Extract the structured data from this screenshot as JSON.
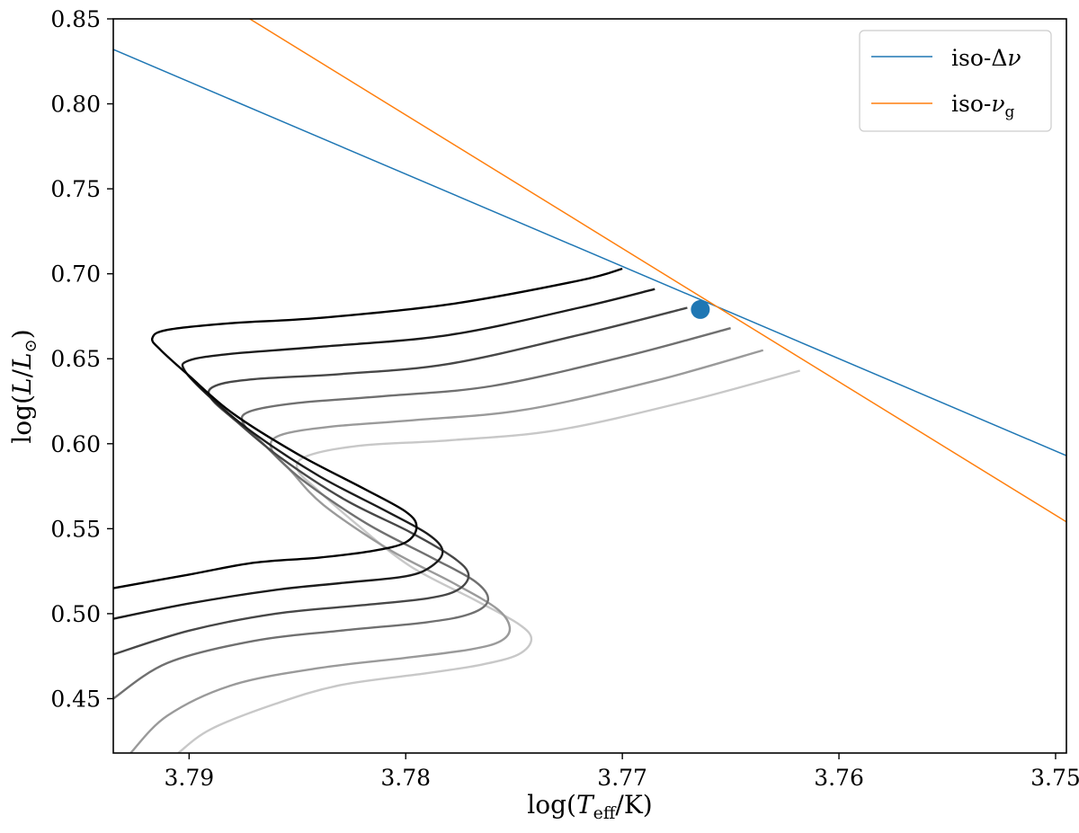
{
  "chart_data": {
    "type": "line",
    "title": "",
    "xlabel": "log(T_eff/K)",
    "xlabel_parts": {
      "pre": "log(",
      "sym": "T",
      "sub": "eff",
      "post": "/K)"
    },
    "ylabel": "log(L/L_sun)",
    "ylabel_parts": {
      "pre": "log(",
      "sym": "L",
      "mid": "/",
      "sym2": "L",
      "sub": "⊙",
      "post": ")"
    },
    "xlim": [
      3.7935,
      3.7495
    ],
    "ylim": [
      0.418,
      0.85
    ],
    "x_reversed": true,
    "xticks": [
      3.79,
      3.78,
      3.77,
      3.76,
      3.75
    ],
    "xtick_labels": [
      "3.79",
      "3.78",
      "3.77",
      "3.76",
      "3.75"
    ],
    "yticks": [
      0.45,
      0.5,
      0.55,
      0.6,
      0.65,
      0.7,
      0.75,
      0.8,
      0.85
    ],
    "ytick_labels": [
      "0.45",
      "0.50",
      "0.55",
      "0.60",
      "0.65",
      "0.70",
      "0.75",
      "0.80",
      "0.85"
    ],
    "grid": false,
    "legend": {
      "position": "top-right",
      "entries": [
        {
          "label_main": "iso-Δ",
          "label_sym": "ν",
          "label_sub": "",
          "color": "#1f77b4"
        },
        {
          "label_main": "iso-",
          "label_sym": "ν",
          "label_sub": "g",
          "color": "#ff7f0e"
        }
      ]
    },
    "reference_lines": [
      {
        "name": "iso-Δν",
        "color": "#1f77b4",
        "x": [
          3.7935,
          3.7495
        ],
        "y": [
          0.832,
          0.593
        ]
      },
      {
        "name": "iso-νg",
        "color": "#ff7f0e",
        "x": [
          3.7872,
          3.7495
        ],
        "y": [
          0.85,
          0.554
        ]
      }
    ],
    "marker": {
      "name": "intersection",
      "x": 3.7664,
      "y": 0.679,
      "color": "#1f77b4"
    },
    "series": [
      {
        "name": "track-1",
        "color": "#000000",
        "x": [
          3.7935,
          3.79,
          3.787,
          3.784,
          3.7815,
          3.78,
          3.7795,
          3.78,
          3.782,
          3.785,
          3.788,
          3.79,
          3.7913,
          3.7917,
          3.791,
          3.788,
          3.784,
          3.778,
          3.772,
          3.77
        ],
        "y": [
          0.515,
          0.523,
          0.53,
          0.533,
          0.537,
          0.542,
          0.551,
          0.56,
          0.574,
          0.594,
          0.618,
          0.64,
          0.655,
          0.662,
          0.667,
          0.671,
          0.674,
          0.682,
          0.696,
          0.703
        ]
      },
      {
        "name": "track-2",
        "color": "#1c1c1c",
        "x": [
          3.7935,
          3.79,
          3.786,
          3.783,
          3.78,
          3.7788,
          3.7783,
          3.779,
          3.781,
          3.784,
          3.787,
          3.789,
          3.7902,
          3.79,
          3.788,
          3.784,
          3.778,
          3.772,
          3.7685
        ],
        "y": [
          0.497,
          0.506,
          0.514,
          0.518,
          0.522,
          0.528,
          0.537,
          0.547,
          0.561,
          0.581,
          0.606,
          0.627,
          0.643,
          0.649,
          0.653,
          0.657,
          0.664,
          0.68,
          0.691
        ]
      },
      {
        "name": "track-3",
        "color": "#474747",
        "x": [
          3.7935,
          3.79,
          3.786,
          3.782,
          3.779,
          3.7776,
          3.7771,
          3.7778,
          3.7798,
          3.7828,
          3.7858,
          3.7878,
          3.789,
          3.7888,
          3.787,
          3.783,
          3.778,
          3.772,
          3.767
        ],
        "y": [
          0.476,
          0.49,
          0.5,
          0.505,
          0.509,
          0.514,
          0.523,
          0.533,
          0.548,
          0.567,
          0.592,
          0.613,
          0.627,
          0.634,
          0.638,
          0.641,
          0.647,
          0.664,
          0.68
        ]
      },
      {
        "name": "track-4",
        "color": "#707070",
        "x": [
          3.7935,
          3.791,
          3.787,
          3.783,
          3.779,
          3.777,
          3.7762,
          3.7768,
          3.7788,
          3.7818,
          3.7848,
          3.7865,
          3.7875,
          3.7872,
          3.785,
          3.781,
          3.776,
          3.77,
          3.765
        ],
        "y": [
          0.45,
          0.471,
          0.484,
          0.49,
          0.495,
          0.5,
          0.508,
          0.519,
          0.533,
          0.553,
          0.579,
          0.599,
          0.612,
          0.619,
          0.624,
          0.628,
          0.634,
          0.651,
          0.668
        ]
      },
      {
        "name": "track-5",
        "color": "#9a9a9a",
        "x": [
          3.7927,
          3.791,
          3.788,
          3.784,
          3.78,
          3.777,
          3.7756,
          3.7752,
          3.7758,
          3.7778,
          3.7808,
          3.7838,
          3.7853,
          3.7862,
          3.7858,
          3.7835,
          3.7795,
          3.7745,
          3.7685,
          3.7635
        ],
        "y": [
          0.418,
          0.44,
          0.458,
          0.468,
          0.474,
          0.479,
          0.484,
          0.492,
          0.503,
          0.518,
          0.538,
          0.564,
          0.584,
          0.597,
          0.605,
          0.61,
          0.614,
          0.62,
          0.637,
          0.655
        ]
      },
      {
        "name": "track-6",
        "color": "#c8c8c8",
        "x": [
          3.7905,
          3.789,
          3.786,
          3.783,
          3.779,
          3.7765,
          3.7748,
          3.7742,
          3.7748,
          3.7768,
          3.7798,
          3.7823,
          3.784,
          3.785,
          3.7845,
          3.782,
          3.778,
          3.773,
          3.767,
          3.7618
        ],
        "y": [
          0.418,
          0.432,
          0.447,
          0.458,
          0.465,
          0.47,
          0.476,
          0.485,
          0.494,
          0.508,
          0.528,
          0.553,
          0.572,
          0.585,
          0.593,
          0.599,
          0.602,
          0.608,
          0.625,
          0.643
        ]
      }
    ]
  }
}
